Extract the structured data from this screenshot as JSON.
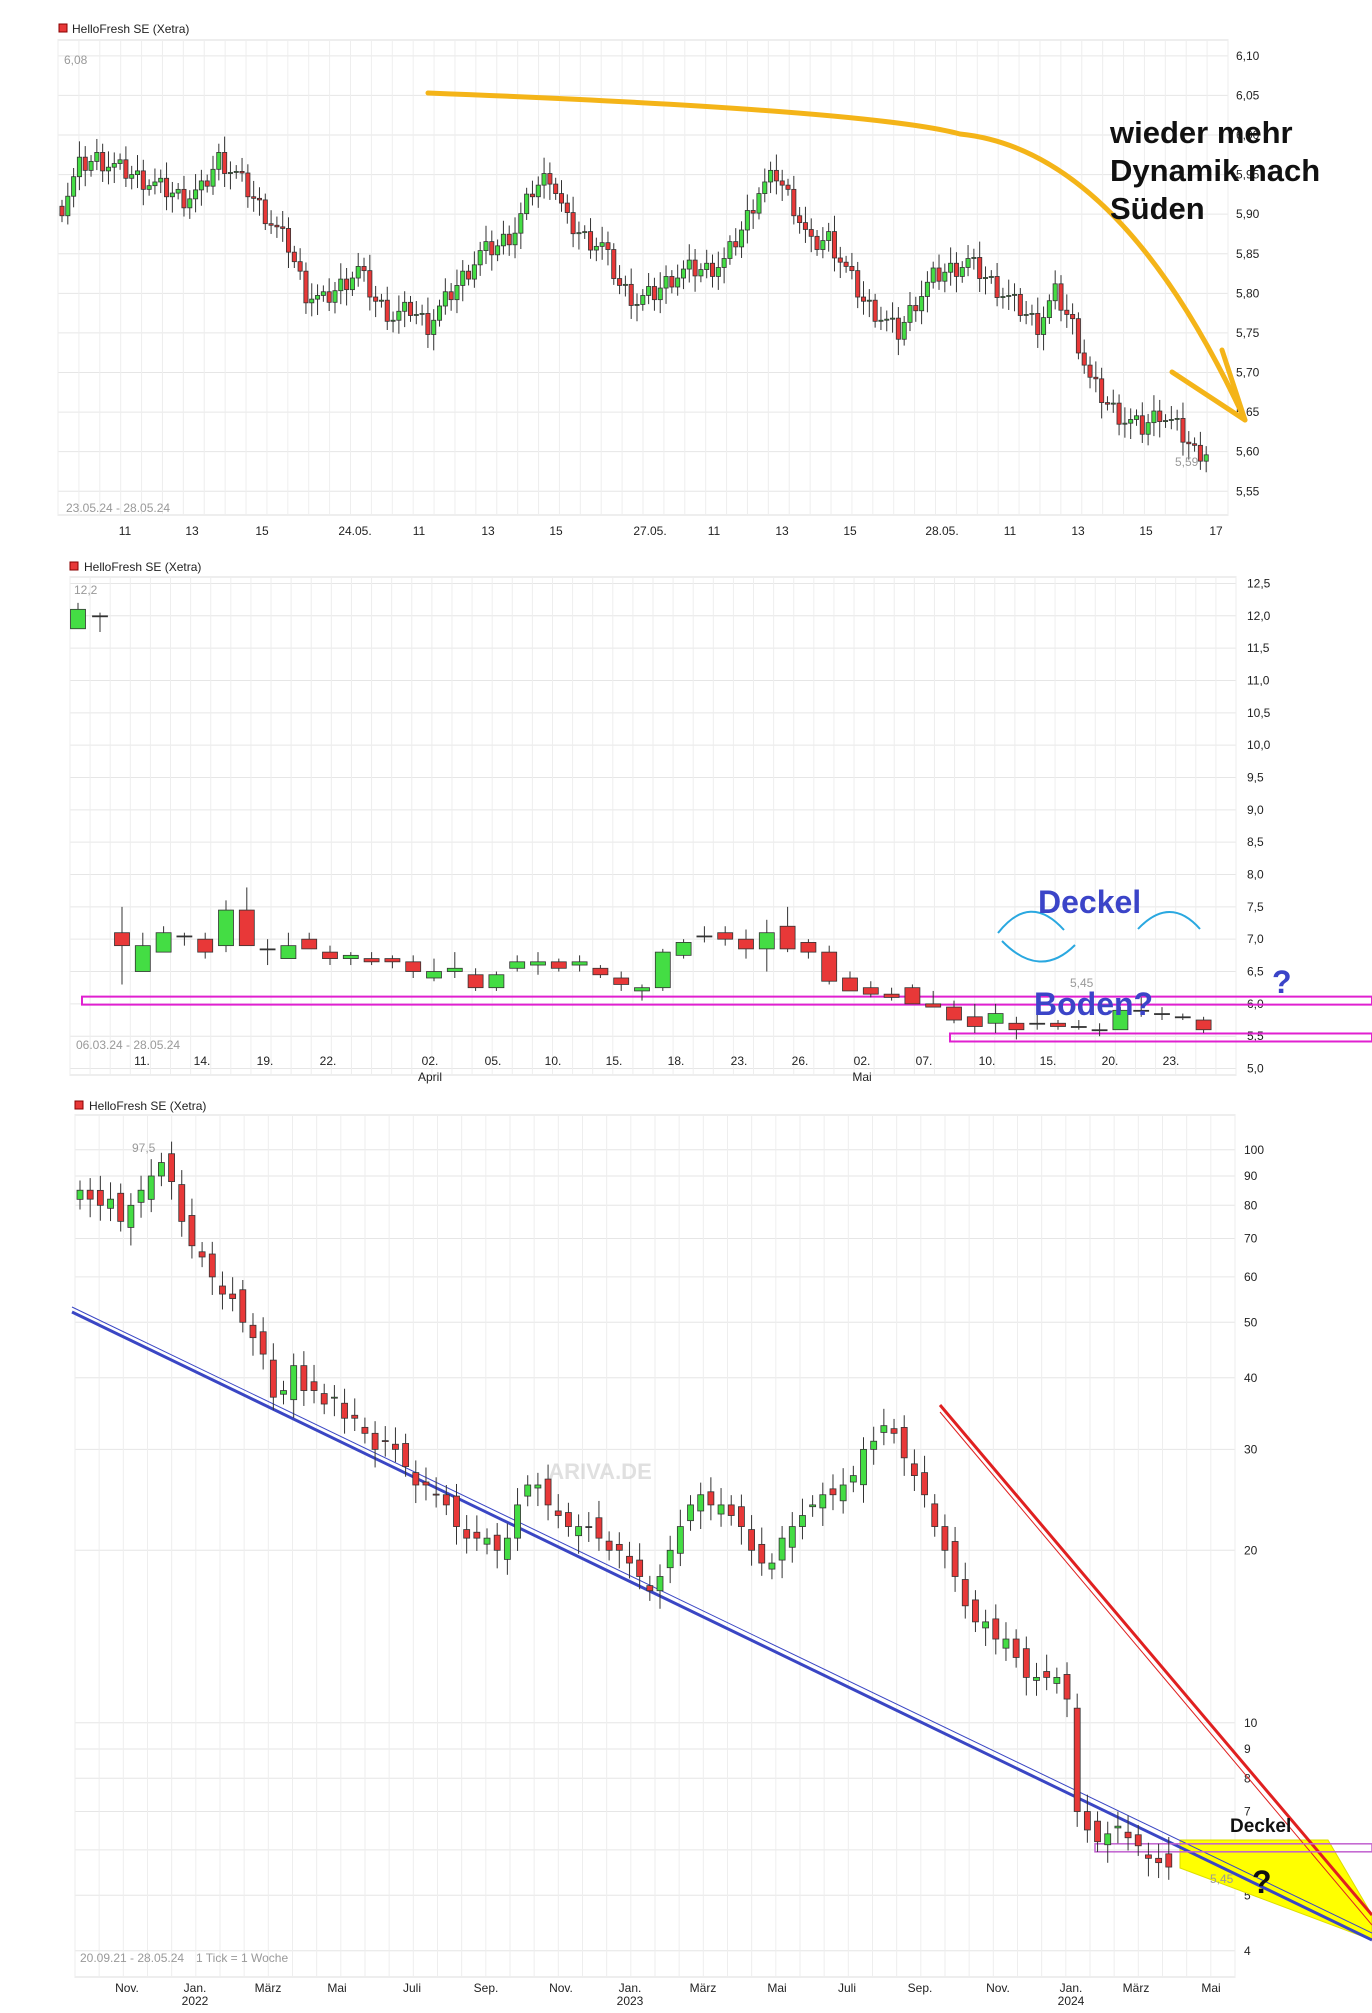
{
  "chart_data": [
    {
      "type": "candlestick",
      "title": "HelloFresh SE (Xetra)",
      "date_range": "23.05.24 - 28.05.24",
      "x_ticks": [
        "11",
        "13",
        "15",
        "24.05.",
        "11",
        "13",
        "15",
        "27.05.",
        "11",
        "13",
        "15",
        "28.05.",
        "11",
        "13",
        "15",
        "17"
      ],
      "y_ticks": [
        "6,10",
        "6,05",
        "6,00",
        "5,95",
        "5,90",
        "5,85",
        "5,80",
        "5,75",
        "5,70",
        "5,65",
        "5,60",
        "5,55"
      ],
      "ylim": [
        5.52,
        6.12
      ],
      "high_label": "6,08",
      "low_label": "5,59",
      "trend_path": [
        [
          0.0,
          6.05
        ],
        [
          12,
          6.0
        ],
        [
          13.5,
          5.98
        ],
        [
          15,
          5.92
        ],
        [
          16.5,
          5.8
        ],
        [
          17.6,
          5.63
        ]
      ],
      "close_path": [
        5.91,
        5.96,
        5.97,
        5.96,
        5.95,
        5.94,
        5.93,
        5.92,
        5.93,
        5.97,
        5.95,
        5.92,
        5.89,
        5.86,
        5.8,
        5.79,
        5.81,
        5.83,
        5.79,
        5.77,
        5.78,
        5.76,
        5.79,
        5.82,
        5.85,
        5.86,
        5.88,
        5.93,
        5.95,
        5.89,
        5.87,
        5.86,
        5.81,
        5.79,
        5.8,
        5.82,
        5.83,
        5.83,
        5.84,
        5.88,
        5.93,
        5.95,
        5.91,
        5.86,
        5.87,
        5.83,
        5.79,
        5.77,
        5.75,
        5.79,
        5.82,
        5.83,
        5.84,
        5.82,
        5.8,
        5.78,
        5.76,
        5.8,
        5.76,
        5.69,
        5.66,
        5.64,
        5.63,
        5.65,
        5.63,
        5.6
      ],
      "annotations": [
        "wieder mehr",
        "Dynamik nach",
        "Süden"
      ]
    },
    {
      "type": "candlestick",
      "title": "HelloFresh SE (Xetra)",
      "date_range": "06.03.24 - 28.05.24",
      "x_ticks": [
        "11.",
        "14.",
        "19.",
        "22.",
        "02.",
        "05.",
        "10.",
        "15.",
        "18.",
        "23.",
        "26.",
        "02.",
        "07.",
        "10.",
        "15.",
        "20.",
        "23."
      ],
      "x_month_labels": [
        "April",
        "Mai"
      ],
      "y_ticks": [
        "12,5",
        "12,0",
        "11,5",
        "11,0",
        "10,5",
        "10,0",
        "9,5",
        "9,0",
        "8,5",
        "8,0",
        "7,5",
        "7,0",
        "6,5",
        "6,0",
        "5,5",
        "5,0"
      ],
      "ylim": [
        4.9,
        12.6
      ],
      "high_label": "12,2",
      "low_label": "5,45",
      "candles": [
        {
          "o": 11.8,
          "c": 12.1,
          "h": 12.2,
          "l": 11.8
        },
        {
          "o": 12.0,
          "c": 12.0,
          "h": 12.05,
          "l": 11.75
        },
        {
          "o": 7.1,
          "c": 6.9,
          "h": 7.5,
          "l": 6.3
        },
        {
          "o": 6.5,
          "c": 6.9,
          "h": 7.1,
          "l": 6.5
        },
        {
          "o": 6.8,
          "c": 7.1,
          "h": 7.2,
          "l": 6.8
        },
        {
          "o": 7.05,
          "c": 7.05,
          "h": 7.1,
          "l": 6.9
        },
        {
          "o": 7.0,
          "c": 6.8,
          "h": 7.1,
          "l": 6.7
        },
        {
          "o": 6.9,
          "c": 7.45,
          "h": 7.6,
          "l": 6.8
        },
        {
          "o": 7.45,
          "c": 6.9,
          "h": 7.8,
          "l": 6.9
        },
        {
          "o": 6.85,
          "c": 6.85,
          "h": 7.0,
          "l": 6.6
        },
        {
          "o": 6.7,
          "c": 6.9,
          "h": 7.1,
          "l": 6.7
        },
        {
          "o": 7.0,
          "c": 6.85,
          "h": 7.1,
          "l": 6.85
        },
        {
          "o": 6.8,
          "c": 6.7,
          "h": 6.9,
          "l": 6.6
        },
        {
          "o": 6.7,
          "c": 6.75,
          "h": 6.8,
          "l": 6.6
        },
        {
          "o": 6.7,
          "c": 6.65,
          "h": 6.8,
          "l": 6.6
        },
        {
          "o": 6.7,
          "c": 6.65,
          "h": 6.75,
          "l": 6.55
        },
        {
          "o": 6.65,
          "c": 6.5,
          "h": 6.75,
          "l": 6.4
        },
        {
          "o": 6.4,
          "c": 6.5,
          "h": 6.7,
          "l": 6.35
        },
        {
          "o": 6.5,
          "c": 6.55,
          "h": 6.8,
          "l": 6.4
        },
        {
          "o": 6.45,
          "c": 6.25,
          "h": 6.55,
          "l": 6.2
        },
        {
          "o": 6.25,
          "c": 6.45,
          "h": 6.5,
          "l": 6.2
        },
        {
          "o": 6.55,
          "c": 6.65,
          "h": 6.75,
          "l": 6.5
        },
        {
          "o": 6.6,
          "c": 6.65,
          "h": 6.8,
          "l": 6.45
        },
        {
          "o": 6.65,
          "c": 6.55,
          "h": 6.7,
          "l": 6.5
        },
        {
          "o": 6.6,
          "c": 6.65,
          "h": 6.75,
          "l": 6.5
        },
        {
          "o": 6.55,
          "c": 6.45,
          "h": 6.6,
          "l": 6.4
        },
        {
          "o": 6.4,
          "c": 6.3,
          "h": 6.5,
          "l": 6.2
        },
        {
          "o": 6.2,
          "c": 6.25,
          "h": 6.3,
          "l": 6.05
        },
        {
          "o": 6.25,
          "c": 6.8,
          "h": 6.85,
          "l": 6.2
        },
        {
          "o": 6.75,
          "c": 6.95,
          "h": 7.0,
          "l": 6.7
        },
        {
          "o": 7.05,
          "c": 7.05,
          "h": 7.2,
          "l": 6.95
        },
        {
          "o": 7.1,
          "c": 7.0,
          "h": 7.2,
          "l": 6.9
        },
        {
          "o": 7.0,
          "c": 6.85,
          "h": 7.15,
          "l": 6.7
        },
        {
          "o": 6.85,
          "c": 7.1,
          "h": 7.3,
          "l": 6.5
        },
        {
          "o": 7.2,
          "c": 6.85,
          "h": 7.5,
          "l": 6.8
        },
        {
          "o": 6.95,
          "c": 6.8,
          "h": 7.0,
          "l": 6.7
        },
        {
          "o": 6.8,
          "c": 6.35,
          "h": 6.9,
          "l": 6.3
        },
        {
          "o": 6.4,
          "c": 6.2,
          "h": 6.5,
          "l": 6.2
        },
        {
          "o": 6.25,
          "c": 6.15,
          "h": 6.35,
          "l": 6.1
        },
        {
          "o": 6.15,
          "c": 6.1,
          "h": 6.25,
          "l": 6.05
        },
        {
          "o": 6.25,
          "c": 6.0,
          "h": 6.3,
          "l": 6.0
        },
        {
          "o": 6.0,
          "c": 5.95,
          "h": 6.2,
          "l": 5.95
        },
        {
          "o": 5.95,
          "c": 5.75,
          "h": 6.05,
          "l": 5.7
        },
        {
          "o": 5.8,
          "c": 5.65,
          "h": 6.0,
          "l": 5.55
        },
        {
          "o": 5.7,
          "c": 5.85,
          "h": 6.0,
          "l": 5.55
        },
        {
          "o": 5.7,
          "c": 5.6,
          "h": 5.8,
          "l": 5.45
        },
        {
          "o": 5.7,
          "c": 5.7,
          "h": 5.85,
          "l": 5.6
        },
        {
          "o": 5.7,
          "c": 5.65,
          "h": 5.75,
          "l": 5.6
        },
        {
          "o": 5.65,
          "c": 5.65,
          "h": 5.75,
          "l": 5.6
        },
        {
          "o": 5.6,
          "c": 5.6,
          "h": 5.7,
          "l": 5.5
        },
        {
          "o": 5.6,
          "c": 5.9,
          "h": 5.95,
          "l": 5.6
        },
        {
          "o": 5.9,
          "c": 5.9,
          "h": 6.1,
          "l": 5.8
        },
        {
          "o": 5.85,
          "c": 5.85,
          "h": 5.95,
          "l": 5.75
        },
        {
          "o": 5.8,
          "c": 5.8,
          "h": 5.85,
          "l": 5.75
        },
        {
          "o": 5.75,
          "c": 5.6,
          "h": 5.8,
          "l": 5.55
        }
      ],
      "zones": [
        {
          "label": "Deckel",
          "value": 6.05
        },
        {
          "label": "Boden?",
          "value": 5.48
        }
      ],
      "annotations": [
        "Deckel",
        "Boden?",
        "?"
      ]
    },
    {
      "type": "candlestick",
      "title": "HelloFresh SE (Xetra)",
      "date_range": "20.09.21 - 28.05.24",
      "interval_note": "1 Tick = 1 Woche",
      "watermark": "ARIVA.DE",
      "x_ticks": [
        "Nov.",
        "Jan.",
        "März",
        "Mai",
        "Juli",
        "Sep.",
        "Nov.",
        "Jan.",
        "März",
        "Mai",
        "Juli",
        "Sep.",
        "Nov.",
        "Jan.",
        "März",
        "Mai"
      ],
      "x_year_labels": [
        "2022",
        "2023",
        "2024"
      ],
      "y_ticks": [
        "100",
        "90",
        "80",
        "70",
        "60",
        "50",
        "40",
        "30",
        "20",
        "10",
        "9",
        "8",
        "7",
        "6",
        "5",
        "4"
      ],
      "y_scale": "log",
      "ylim": [
        3.6,
        115
      ],
      "high_label": "97,5",
      "low_label": "5,45",
      "close_path": [
        85,
        82,
        80,
        82,
        75,
        80,
        85,
        90,
        95,
        88,
        75,
        68,
        65,
        60,
        56,
        55,
        50,
        47,
        44,
        37,
        38,
        42,
        38,
        38,
        36,
        37,
        34,
        34,
        32,
        30,
        31,
        30,
        28,
        26,
        26,
        25,
        24,
        22,
        21,
        21,
        21,
        20,
        21,
        24,
        26,
        26,
        24,
        23,
        22,
        22,
        22,
        21,
        20,
        20,
        19,
        18,
        17,
        18,
        20,
        22,
        24,
        25,
        24,
        24,
        23,
        22,
        20,
        19,
        19,
        21,
        22,
        23,
        24,
        25,
        25,
        26,
        27,
        30,
        31,
        33,
        32,
        29,
        27,
        25,
        22,
        20,
        18,
        16,
        15,
        15,
        14,
        14,
        13,
        12,
        12,
        12,
        12,
        11,
        7,
        6.5,
        6.2,
        6.4,
        6.6,
        6.3,
        6.1,
        5.8,
        5.7,
        5.6
      ],
      "trendlines": [
        {
          "color": "#3a46c4",
          "from": [
            0,
            52
          ],
          "to": [
            143,
            3.9
          ]
        },
        {
          "color": "#e02020",
          "from": [
            90,
            34
          ],
          "to": [
            143,
            4.8
          ]
        }
      ],
      "zones": [
        {
          "label": "Deckel",
          "value": 6.05
        }
      ],
      "annotations": [
        "Deckel",
        "?"
      ]
    }
  ],
  "colors": {
    "up": "#44dd44",
    "down": "#e83838",
    "trend_orange": "#f4b418",
    "zone": "#e020d0",
    "annot_blue": "#3b44c8",
    "bull_line": "#3a46c4",
    "bear_line": "#e02020",
    "fill_yellow": "#ffff00"
  }
}
